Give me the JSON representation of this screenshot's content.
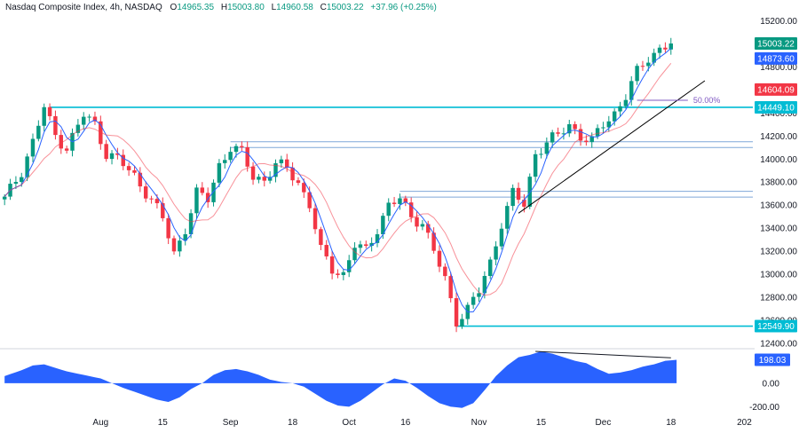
{
  "header": {
    "symbol": "Nasdaq Composite Index, 4h, NASDAQ",
    "o_label": "O",
    "o_value": "14965.35",
    "h_label": "H",
    "h_value": "15003.80",
    "l_label": "L",
    "l_value": "14960.58",
    "c_label": "C",
    "c_value": "15003.22",
    "change": "+37.96 (+0.25%)"
  },
  "colors": {
    "up": "#089981",
    "down": "#f23645",
    "fast_ma": "#2962ff",
    "slow_ma": "#f23645",
    "level": "#00bcd4",
    "zone": "#7fa7d8",
    "trendline": "#000000",
    "fib": "#7e57c2",
    "oscillator": "#2962ff",
    "axis_text": "#131722"
  },
  "chart_data": [
    {
      "type": "candlestick",
      "ylim": [
        12400,
        15350
      ],
      "y_ticks": [
        "15200.00",
        "15000.00",
        "14800.00",
        "14600.00",
        "14400.00",
        "14200.00",
        "14000.00",
        "13800.00",
        "13600.00",
        "13400.00",
        "13200.00",
        "13000.00",
        "12800.00",
        "12600.00",
        "12400.00"
      ],
      "x_ticks": [
        {
          "label": "Aug",
          "index": 17
        },
        {
          "label": "15",
          "index": 28
        },
        {
          "label": "Sep",
          "index": 40
        },
        {
          "label": "18",
          "index": 51
        },
        {
          "label": "Oct",
          "index": 61
        },
        {
          "label": "16",
          "index": 71
        },
        {
          "label": "Nov",
          "index": 84
        },
        {
          "label": "15",
          "index": 95
        },
        {
          "label": "Dec",
          "index": 106
        },
        {
          "label": "18",
          "index": 118
        },
        {
          "label": "202",
          "index": 131
        }
      ],
      "close_path": [
        [
          0,
          13650
        ],
        [
          3,
          13900
        ],
        [
          5,
          14150
        ],
        [
          7,
          14450
        ],
        [
          9,
          14200
        ],
        [
          11,
          14100
        ],
        [
          14,
          14380
        ],
        [
          16,
          14300
        ],
        [
          18,
          14050
        ],
        [
          20,
          14000
        ],
        [
          23,
          13850
        ],
        [
          26,
          13650
        ],
        [
          28,
          13480
        ],
        [
          30,
          13180
        ],
        [
          32,
          13400
        ],
        [
          34,
          13700
        ],
        [
          36,
          13650
        ],
        [
          38,
          13950
        ],
        [
          40,
          14100
        ],
        [
          42,
          14050
        ],
        [
          44,
          13850
        ],
        [
          46,
          13820
        ],
        [
          48,
          13950
        ],
        [
          50,
          13920
        ],
        [
          52,
          13800
        ],
        [
          54,
          13600
        ],
        [
          56,
          13200
        ],
        [
          58,
          13050
        ],
        [
          60,
          13000
        ],
        [
          62,
          13250
        ],
        [
          64,
          13200
        ],
        [
          66,
          13400
        ],
        [
          68,
          13600
        ],
        [
          70,
          13650
        ],
        [
          72,
          13500
        ],
        [
          74,
          13450
        ],
        [
          76,
          13200
        ],
        [
          78,
          12950
        ],
        [
          80,
          12600
        ],
        [
          82,
          12700
        ],
        [
          84,
          12850
        ],
        [
          86,
          13100
        ],
        [
          88,
          13450
        ],
        [
          90,
          13700
        ],
        [
          92,
          13600
        ],
        [
          94,
          14050
        ],
        [
          96,
          14150
        ],
        [
          98,
          14200
        ],
        [
          100,
          14300
        ],
        [
          102,
          14200
        ],
        [
          104,
          14150
        ],
        [
          106,
          14300
        ],
        [
          108,
          14400
        ],
        [
          110,
          14550
        ],
        [
          112,
          14750
        ],
        [
          114,
          14880
        ],
        [
          116,
          14960
        ],
        [
          118,
          15003.22
        ]
      ],
      "horizontal_levels": [
        {
          "label": "14449.10",
          "value": 14449.1,
          "from_index": 8
        },
        {
          "label": "12549.90",
          "value": 12549.9,
          "from_index": 80
        }
      ],
      "zones": [
        {
          "high": 14150,
          "low": 14100,
          "from_index": 40
        },
        {
          "high": 13720,
          "low": 13670,
          "from_index": 70
        }
      ],
      "trendline": {
        "start": [
          91,
          13530
        ],
        "end": [
          124,
          14680
        ]
      },
      "fibonacci": {
        "label": "50.00%",
        "value": 14510,
        "from_index": 112,
        "to_index": 121
      },
      "price_tags": [
        {
          "label": "15003.22",
          "value": 15003.22,
          "color": "#089981"
        },
        {
          "label": "14873.60",
          "value": 14873.6,
          "color": "#2962ff"
        },
        {
          "label": "14604.09",
          "value": 14604.09,
          "color": "#f23645"
        },
        {
          "label": "14449.10",
          "value": 14449.1,
          "color": "#00bcd4"
        },
        {
          "label": "12549.90",
          "value": 12549.9,
          "color": "#00bcd4"
        }
      ]
    },
    {
      "type": "area",
      "ylim": [
        -250,
        270
      ],
      "y_ticks": [
        "0.00",
        "-200.00"
      ],
      "last_value_label": "198.03",
      "last_value": 198.03,
      "values_path": [
        [
          0,
          60
        ],
        [
          3,
          110
        ],
        [
          5,
          150
        ],
        [
          7,
          160
        ],
        [
          9,
          130
        ],
        [
          11,
          100
        ],
        [
          14,
          70
        ],
        [
          17,
          40
        ],
        [
          19,
          0
        ],
        [
          21,
          -40
        ],
        [
          24,
          -90
        ],
        [
          27,
          -140
        ],
        [
          29,
          -160
        ],
        [
          31,
          -120
        ],
        [
          33,
          -50
        ],
        [
          35,
          0
        ],
        [
          37,
          70
        ],
        [
          39,
          110
        ],
        [
          41,
          120
        ],
        [
          43,
          100
        ],
        [
          45,
          70
        ],
        [
          47,
          30
        ],
        [
          49,
          10
        ],
        [
          51,
          0
        ],
        [
          53,
          -30
        ],
        [
          55,
          -90
        ],
        [
          57,
          -150
        ],
        [
          59,
          -190
        ],
        [
          61,
          -200
        ],
        [
          63,
          -150
        ],
        [
          65,
          -80
        ],
        [
          67,
          -10
        ],
        [
          69,
          40
        ],
        [
          71,
          20
        ],
        [
          73,
          -40
        ],
        [
          75,
          -110
        ],
        [
          77,
          -170
        ],
        [
          79,
          -200
        ],
        [
          81,
          -210
        ],
        [
          83,
          -170
        ],
        [
          85,
          -60
        ],
        [
          87,
          60
        ],
        [
          89,
          150
        ],
        [
          91,
          220
        ],
        [
          93,
          240
        ],
        [
          95,
          270
        ],
        [
          97,
          250
        ],
        [
          99,
          220
        ],
        [
          101,
          190
        ],
        [
          103,
          170
        ],
        [
          105,
          120
        ],
        [
          107,
          80
        ],
        [
          109,
          90
        ],
        [
          111,
          110
        ],
        [
          113,
          140
        ],
        [
          115,
          160
        ],
        [
          117,
          190
        ],
        [
          119,
          198.03
        ]
      ],
      "divergence_line": {
        "start": [
          94,
          270
        ],
        "end": [
          118,
          215
        ]
      }
    }
  ]
}
